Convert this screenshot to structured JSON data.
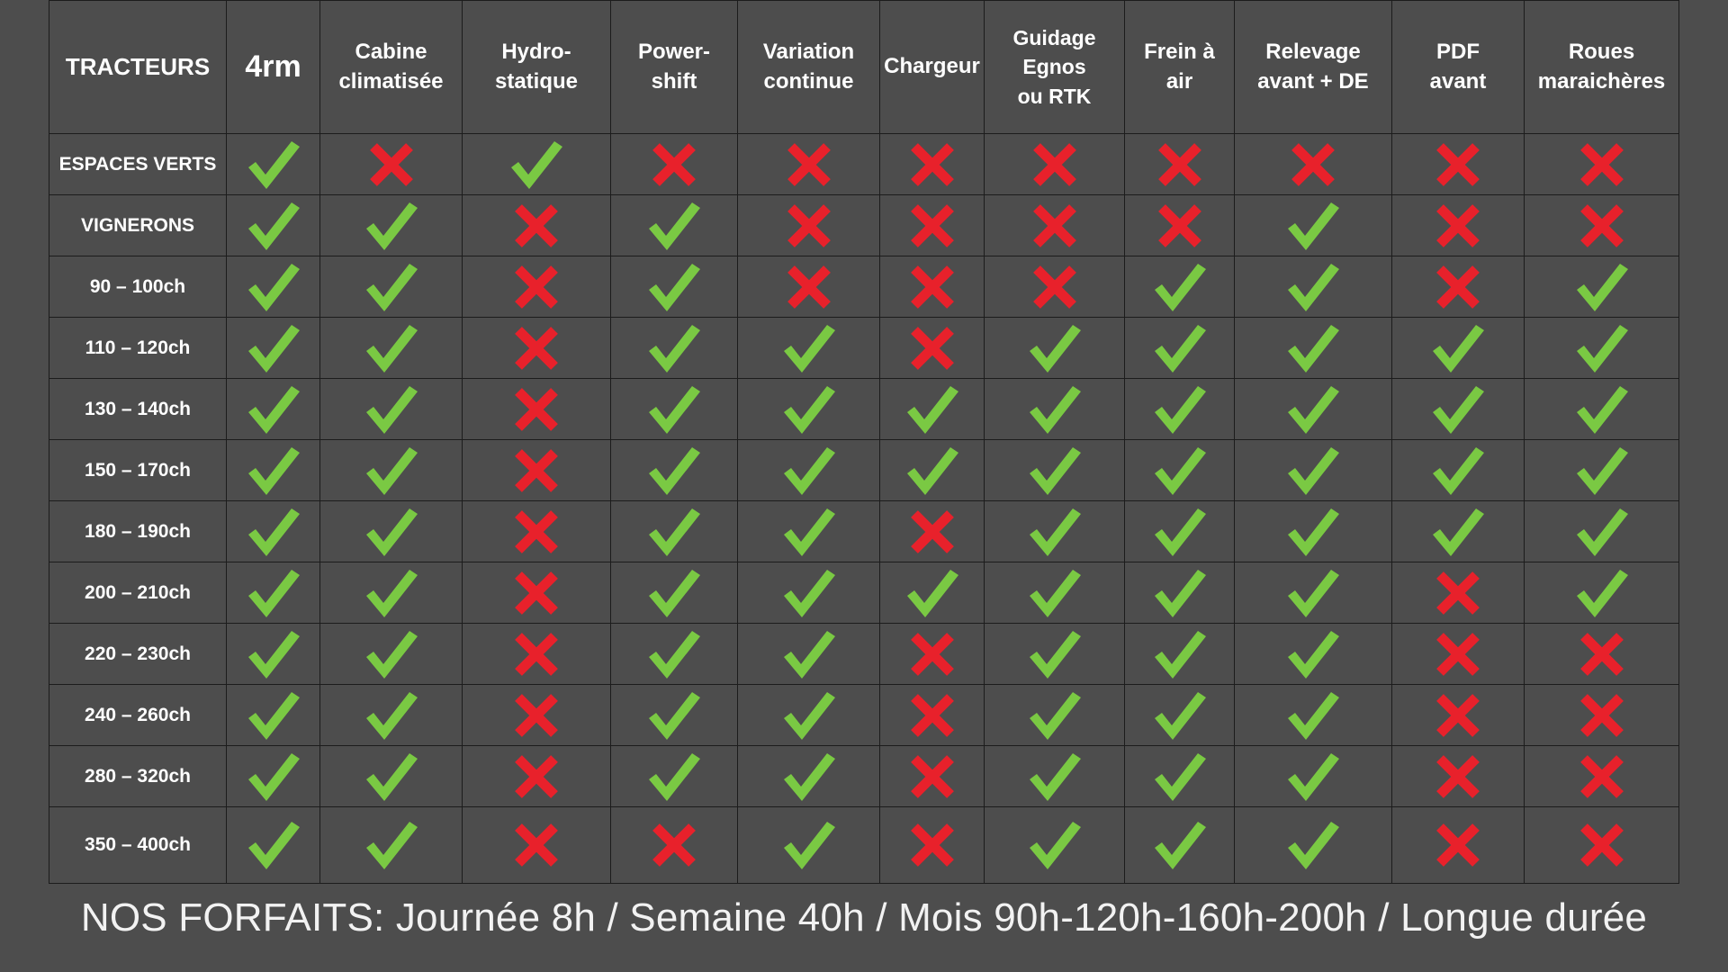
{
  "colors": {
    "background": "#4d4d4d",
    "border": "#1c1c1c",
    "check": "#7ac943",
    "cross": "#e8212b",
    "text": "#ffffff"
  },
  "icons": {
    "yes": "check-icon",
    "no": "cross-icon"
  },
  "table": {
    "corner_label": "TRACTEURS",
    "columns": [
      "4rm",
      "Cabine\nclimatisée",
      "Hydro-\nstatique",
      "Power-\nshift",
      "Variation\ncontinue",
      "Chargeur",
      "Guidage\nEgnos\nou RTK",
      "Frein à\nair",
      "Relevage\navant + DE",
      "PDF\navant",
      "Roues\nmaraichères"
    ],
    "rows": [
      {
        "label": "ESPACES VERTS",
        "values": [
          1,
          0,
          1,
          0,
          0,
          0,
          0,
          0,
          0,
          0,
          0
        ]
      },
      {
        "label": "VIGNERONS",
        "values": [
          1,
          1,
          0,
          1,
          0,
          0,
          0,
          0,
          1,
          0,
          0
        ]
      },
      {
        "label": "90 – 100ch",
        "values": [
          1,
          1,
          0,
          1,
          0,
          0,
          0,
          1,
          1,
          0,
          1
        ]
      },
      {
        "label": "110 – 120ch",
        "values": [
          1,
          1,
          0,
          1,
          1,
          0,
          1,
          1,
          1,
          1,
          1
        ]
      },
      {
        "label": "130 – 140ch",
        "values": [
          1,
          1,
          0,
          1,
          1,
          1,
          1,
          1,
          1,
          1,
          1
        ]
      },
      {
        "label": "150 – 170ch",
        "values": [
          1,
          1,
          0,
          1,
          1,
          1,
          1,
          1,
          1,
          1,
          1
        ]
      },
      {
        "label": "180 – 190ch",
        "values": [
          1,
          1,
          0,
          1,
          1,
          0,
          1,
          1,
          1,
          1,
          1
        ]
      },
      {
        "label": "200 – 210ch",
        "values": [
          1,
          1,
          0,
          1,
          1,
          1,
          1,
          1,
          1,
          0,
          1
        ]
      },
      {
        "label": "220 – 230ch",
        "values": [
          1,
          1,
          0,
          1,
          1,
          0,
          1,
          1,
          1,
          0,
          0
        ]
      },
      {
        "label": "240 – 260ch",
        "values": [
          1,
          1,
          0,
          1,
          1,
          0,
          1,
          1,
          1,
          0,
          0
        ]
      },
      {
        "label": "280 – 320ch",
        "values": [
          1,
          1,
          0,
          1,
          1,
          0,
          1,
          1,
          1,
          0,
          0
        ]
      },
      {
        "label": "350 – 400ch",
        "values": [
          1,
          1,
          0,
          0,
          1,
          0,
          1,
          1,
          1,
          0,
          0
        ]
      }
    ]
  },
  "footer": {
    "text": "NOS FORFAITS: Journée 8h / Semaine 40h / Mois 90h-120h-160h-200h / Longue durée"
  }
}
